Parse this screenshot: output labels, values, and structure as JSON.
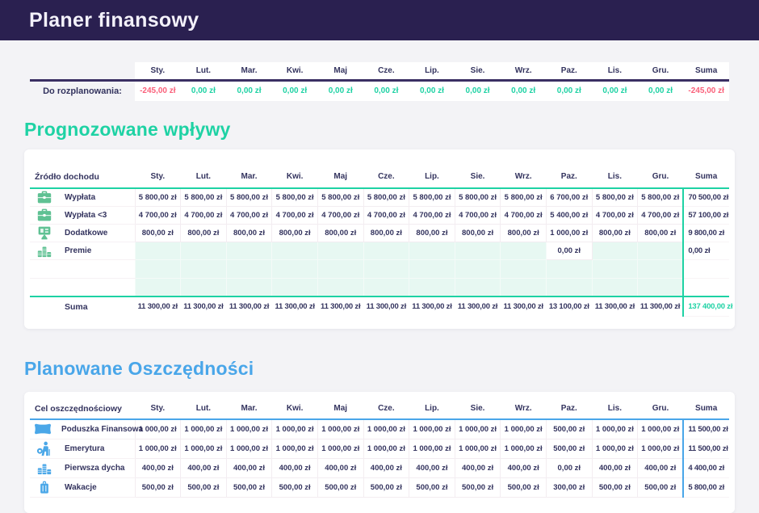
{
  "app": {
    "title": "Planer finansowy"
  },
  "months": [
    "Sty.",
    "Lut.",
    "Mar.",
    "Kwi.",
    "Maj",
    "Cze.",
    "Lip.",
    "Sie.",
    "Wrz.",
    "Paz.",
    "Lis.",
    "Gru."
  ],
  "suma_label": "Suma",
  "colors": {
    "header_bg": "#2a2050",
    "accent_income": "#1ed2a4",
    "accent_savings": "#49a6e9",
    "negative": "#fa5f79",
    "text_navy": "#33335e",
    "empty_cell": "#e7f8f2"
  },
  "summary": {
    "label": "Do rozplanowania:",
    "values": [
      "-245,00 zł",
      "0,00 zł",
      "0,00 zł",
      "0,00 zł",
      "0,00 zł",
      "0,00 zł",
      "0,00 zł",
      "0,00 zł",
      "0,00 zł",
      "0,00 zł",
      "0,00 zł",
      "0,00 zł"
    ],
    "total": "-245,00 zł"
  },
  "income": {
    "heading": "Prognozowane wpływy",
    "col_header": "Źródło dochodu",
    "rows": [
      {
        "name": "Wypłata",
        "icon": "briefcase-icon",
        "values": [
          "5 800,00 zł",
          "5 800,00 zł",
          "5 800,00 zł",
          "5 800,00 zł",
          "5 800,00 zł",
          "5 800,00 zł",
          "5 800,00 zł",
          "5 800,00 zł",
          "5 800,00 zł",
          "6 700,00 zł",
          "5 800,00 zł",
          "5 800,00 zł"
        ],
        "total": "70 500,00 zł"
      },
      {
        "name": "Wypłata <3",
        "icon": "briefcase-icon",
        "values": [
          "4 700,00 zł",
          "4 700,00 zł",
          "4 700,00 zł",
          "4 700,00 zł",
          "4 700,00 zł",
          "4 700,00 zł",
          "4 700,00 zł",
          "4 700,00 zł",
          "4 700,00 zł",
          "5 400,00 zł",
          "4 700,00 zł",
          "4 700,00 zł"
        ],
        "total": "57 100,00 zł"
      },
      {
        "name": "Dodatkowe",
        "icon": "monitor-money-icon",
        "values": [
          "800,00 zł",
          "800,00 zł",
          "800,00 zł",
          "800,00 zł",
          "800,00 zł",
          "800,00 zł",
          "800,00 zł",
          "800,00 zł",
          "800,00 zł",
          "1 000,00 zł",
          "800,00 zł",
          "800,00 zł"
        ],
        "total": "9 800,00 zł"
      },
      {
        "name": "Premie",
        "icon": "coins-icon",
        "values": [
          "",
          "",
          "",
          "",
          "",
          "",
          "",
          "",
          "",
          "0,00 zł",
          "",
          ""
        ],
        "total": "0,00 zł"
      }
    ],
    "empty_rows": 2,
    "suma_row": {
      "label": "Suma",
      "values": [
        "11 300,00 zł",
        "11 300,00 zł",
        "11 300,00 zł",
        "11 300,00 zł",
        "11 300,00 zł",
        "11 300,00 zł",
        "11 300,00 zł",
        "11 300,00 zł",
        "11 300,00 zł",
        "13 100,00 zł",
        "11 300,00 zł",
        "11 300,00 zł"
      ],
      "total": "137 400,00 zł"
    }
  },
  "savings": {
    "heading": "Planowane Oszczędności",
    "col_header": "Cel oszczędnościowy",
    "rows": [
      {
        "name": "Poduszka Finansowa",
        "icon": "pillow-icon",
        "values": [
          "1 000,00 zł",
          "1 000,00 zł",
          "1 000,00 zł",
          "1 000,00 zł",
          "1 000,00 zł",
          "1 000,00 zł",
          "1 000,00 zł",
          "1 000,00 zł",
          "1 000,00 zł",
          "500,00 zł",
          "1 000,00 zł",
          "1 000,00 zł"
        ],
        "total": "11 500,00 zł"
      },
      {
        "name": "Emerytura",
        "icon": "retirement-icon",
        "values": [
          "1 000,00 zł",
          "1 000,00 zł",
          "1 000,00 zł",
          "1 000,00 zł",
          "1 000,00 zł",
          "1 000,00 zł",
          "1 000,00 zł",
          "1 000,00 zł",
          "1 000,00 zł",
          "500,00 zł",
          "1 000,00 zł",
          "1 000,00 zł"
        ],
        "total": "11 500,00 zł"
      },
      {
        "name": "Pierwsza dycha",
        "icon": "coins-icon",
        "values": [
          "400,00 zł",
          "400,00 zł",
          "400,00 zł",
          "400,00 zł",
          "400,00 zł",
          "400,00 zł",
          "400,00 zł",
          "400,00 zł",
          "400,00 zł",
          "0,00 zł",
          "400,00 zł",
          "400,00 zł"
        ],
        "total": "4 400,00 zł"
      },
      {
        "name": "Wakacje",
        "icon": "suitcase-icon",
        "values": [
          "500,00 zł",
          "500,00 zł",
          "500,00 zł",
          "500,00 zł",
          "500,00 zł",
          "500,00 zł",
          "500,00 zł",
          "500,00 zł",
          "500,00 zł",
          "300,00 zł",
          "500,00 zł",
          "500,00 zł"
        ],
        "total": "5 800,00 zł"
      }
    ]
  }
}
